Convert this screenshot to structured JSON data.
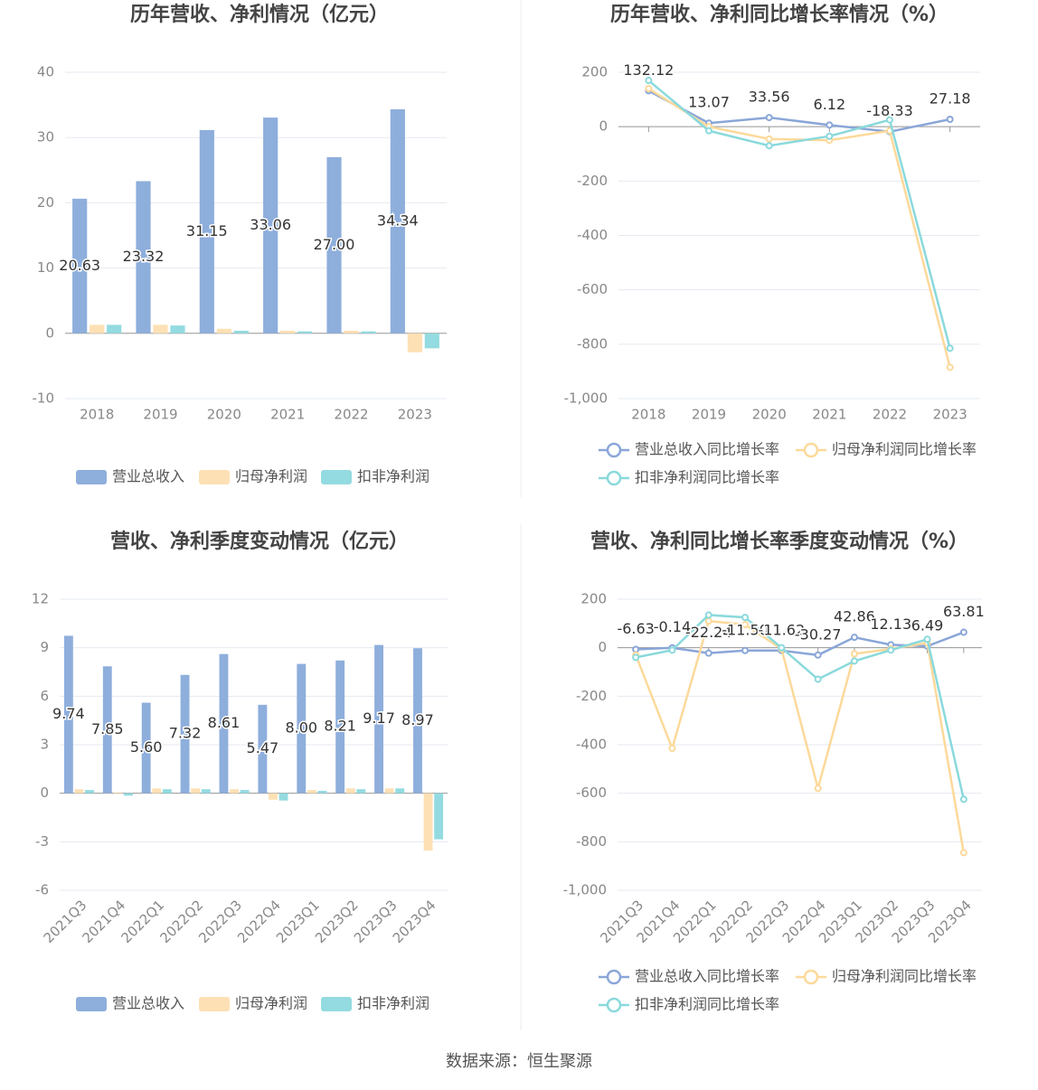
{
  "chart_data": [
    {
      "type": "bar",
      "title": "历年营收、净利情况（亿元）",
      "categories": [
        "2018",
        "2019",
        "2020",
        "2021",
        "2022",
        "2023"
      ],
      "series": [
        {
          "name": "营业总收入",
          "color": "#8eaedc",
          "values": [
            20.63,
            23.32,
            31.15,
            33.06,
            27.0,
            34.34
          ],
          "value_labels": [
            "20.63",
            "23.32",
            "31.15",
            "33.06",
            "27.00",
            "34.34"
          ]
        },
        {
          "name": "归母净利润",
          "color": "#fde0b4",
          "values": [
            1.3,
            1.3,
            0.7,
            0.4,
            0.4,
            -2.9
          ]
        },
        {
          "name": "扣非净利润",
          "color": "#93dbe0",
          "values": [
            1.3,
            1.2,
            0.4,
            0.3,
            0.3,
            -2.3
          ]
        }
      ],
      "ylim": [
        -10,
        40
      ],
      "yticks": [
        -10,
        0,
        10,
        20,
        30,
        40
      ],
      "grid": true
    },
    {
      "type": "line",
      "title": "历年营收、净利同比增长率情况（%）",
      "categories": [
        "2018",
        "2019",
        "2020",
        "2021",
        "2022",
        "2023"
      ],
      "series": [
        {
          "name": "营业总收入同比增长率",
          "color": "#8aa6d8",
          "values": [
            132.12,
            13.07,
            33.56,
            6.12,
            -18.33,
            27.18
          ]
        },
        {
          "name": "归母净利润同比增长率",
          "color": "#fcd99a",
          "values": [
            140,
            0,
            -45,
            -50,
            -15,
            -885
          ]
        },
        {
          "name": "扣非净利润同比增长率",
          "color": "#8ad9dc",
          "values": [
            170,
            -15,
            -70,
            -35,
            25,
            -815
          ]
        }
      ],
      "ylim": [
        -1000,
        200
      ],
      "yticks": [
        {
          "value": -1000,
          "label": "-1,000"
        },
        -800,
        -600,
        -400,
        -200,
        0,
        200
      ],
      "grid": true
    },
    {
      "type": "bar",
      "title": "营收、净利季度变动情况（亿元）",
      "categories": [
        "2021Q3",
        "2021Q4",
        "2022Q1",
        "2022Q2",
        "2022Q3",
        "2022Q4",
        "2023Q1",
        "2023Q2",
        "2023Q3",
        "2023Q4"
      ],
      "series": [
        {
          "name": "营业总收入",
          "color": "#8eaedc",
          "values": [
            9.74,
            7.85,
            5.6,
            7.32,
            8.61,
            5.47,
            8.0,
            8.21,
            9.17,
            8.97
          ],
          "value_labels": [
            "9.74",
            "7.85",
            "5.60",
            "7.32",
            "8.61",
            "5.47",
            "8.00",
            "8.21",
            "9.17",
            "8.97"
          ]
        },
        {
          "name": "归母净利润",
          "color": "#fde0b4",
          "values": [
            0.25,
            0.05,
            0.3,
            0.3,
            0.25,
            -0.4,
            0.2,
            0.3,
            0.3,
            -3.55
          ]
        },
        {
          "name": "扣非净利润",
          "color": "#93dbe0",
          "values": [
            0.2,
            -0.15,
            0.25,
            0.25,
            0.2,
            -0.45,
            0.15,
            0.25,
            0.3,
            -2.85
          ]
        }
      ],
      "ylim": [
        -6,
        12
      ],
      "yticks": [
        -6,
        -3,
        0,
        3,
        6,
        9,
        12
      ],
      "grid": true
    },
    {
      "type": "line",
      "title": "营收、净利同比增长率季度变动情况（%）",
      "categories": [
        "2021Q3",
        "2021Q4",
        "2022Q1",
        "2022Q2",
        "2022Q3",
        "2022Q4",
        "2023Q1",
        "2023Q2",
        "2023Q3",
        "2023Q4"
      ],
      "series": [
        {
          "name": "营业总收入同比增长率",
          "color": "#8aa6d8",
          "values": [
            -6.63,
            -0.14,
            -22.24,
            -11.5,
            -11.62,
            -30.27,
            42.86,
            12.13,
            6.49,
            63.81
          ],
          "value_labels": [
            "-6.63",
            "-0.14",
            "-22.24",
            "-11.50",
            "-11.62",
            "-30.27",
            "42.86",
            "12.13",
            "6.49",
            "63.81"
          ]
        },
        {
          "name": "归母净利润同比增长率",
          "color": "#fcd99a",
          "values": [
            -30,
            -415,
            110,
            95,
            -5,
            -580,
            -25,
            -5,
            20,
            -845
          ]
        },
        {
          "name": "扣非净利润同比增长率",
          "color": "#8ad9dc",
          "values": [
            -40,
            -10,
            135,
            125,
            0,
            -130,
            -55,
            -10,
            35,
            -625
          ]
        }
      ],
      "ylim": [
        -1000,
        200
      ],
      "yticks": [
        {
          "value": -1000,
          "label": "-1,000"
        },
        -800,
        -600,
        -400,
        -200,
        0,
        200
      ],
      "grid": true
    }
  ],
  "source": "数据来源：恒生聚源"
}
